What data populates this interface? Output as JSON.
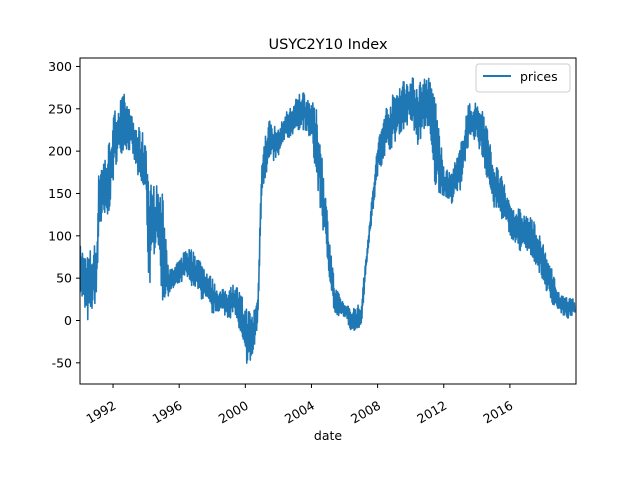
{
  "chart_data": {
    "type": "line",
    "title": "USYC2Y10 Index",
    "xlabel": "date",
    "ylabel": "",
    "xlim": [
      "1990-01-01",
      "2019-12-31"
    ],
    "ylim": [
      -75,
      310
    ],
    "x_ticks": [
      "1992",
      "1996",
      "2000",
      "2004",
      "2008",
      "2012",
      "2016"
    ],
    "y_ticks": [
      -50,
      0,
      50,
      100,
      150,
      200,
      250,
      300
    ],
    "grid": false,
    "legend": {
      "position": "top-right",
      "entries": [
        "prices"
      ]
    },
    "series": [
      {
        "name": "prices",
        "color": "#1f77b4",
        "points": [
          [
            "1990-01",
            30,
            90
          ],
          [
            "1990-06",
            -10,
            80
          ],
          [
            "1991-01",
            20,
            95
          ],
          [
            "1991-03",
            100,
            190
          ],
          [
            "1991-09",
            110,
            205
          ],
          [
            "1992-03",
            180,
            255
          ],
          [
            "1992-09",
            200,
            268
          ],
          [
            "1993-03",
            195,
            240
          ],
          [
            "1993-09",
            150,
            225
          ],
          [
            "1994-01",
            140,
            220
          ],
          [
            "1994-03",
            25,
            165
          ],
          [
            "1994-09",
            100,
            160
          ],
          [
            "1995-01",
            10,
            150
          ],
          [
            "1995-06",
            30,
            60
          ],
          [
            "1996-01",
            40,
            70
          ],
          [
            "1996-06",
            45,
            90
          ],
          [
            "1997-01",
            35,
            80
          ],
          [
            "1997-06",
            20,
            70
          ],
          [
            "1998-01",
            5,
            50
          ],
          [
            "1998-06",
            10,
            35
          ],
          [
            "1999-01",
            0,
            40
          ],
          [
            "1999-06",
            5,
            45
          ],
          [
            "2000-01",
            -55,
            20
          ],
          [
            "2000-06",
            -55,
            10
          ],
          [
            "2000-10",
            -10,
            30
          ],
          [
            "2001-01",
            150,
            200
          ],
          [
            "2001-06",
            180,
            240
          ],
          [
            "2002-01",
            190,
            225
          ],
          [
            "2002-06",
            210,
            245
          ],
          [
            "2003-01",
            220,
            260
          ],
          [
            "2003-06",
            225,
            275
          ],
          [
            "2004-01",
            210,
            260
          ],
          [
            "2004-06",
            140,
            245
          ],
          [
            "2005-01",
            60,
            120
          ],
          [
            "2005-06",
            0,
            40
          ],
          [
            "2006-01",
            5,
            20
          ],
          [
            "2006-06",
            -15,
            15
          ],
          [
            "2007-01",
            -10,
            20
          ],
          [
            "2007-06",
            80,
            100
          ],
          [
            "2008-01",
            170,
            210
          ],
          [
            "2008-06",
            190,
            250
          ],
          [
            "2009-01",
            205,
            270
          ],
          [
            "2009-06",
            220,
            285
          ],
          [
            "2010-01",
            230,
            288
          ],
          [
            "2010-06",
            200,
            285
          ],
          [
            "2011-01",
            230,
            290
          ],
          [
            "2011-06",
            150,
            280
          ],
          [
            "2012-01",
            145,
            180
          ],
          [
            "2012-06",
            135,
            175
          ],
          [
            "2013-01",
            150,
            205
          ],
          [
            "2013-06",
            200,
            255
          ],
          [
            "2014-01",
            210,
            260
          ],
          [
            "2014-06",
            180,
            250
          ],
          [
            "2015-01",
            130,
            190
          ],
          [
            "2015-06",
            120,
            175
          ],
          [
            "2016-01",
            100,
            140
          ],
          [
            "2016-06",
            80,
            135
          ],
          [
            "2017-01",
            75,
            125
          ],
          [
            "2017-06",
            70,
            120
          ],
          [
            "2018-01",
            45,
            90
          ],
          [
            "2018-06",
            20,
            70
          ],
          [
            "2019-01",
            10,
            30
          ],
          [
            "2019-06",
            0,
            28
          ],
          [
            "2019-12",
            5,
            25
          ]
        ]
      }
    ]
  }
}
